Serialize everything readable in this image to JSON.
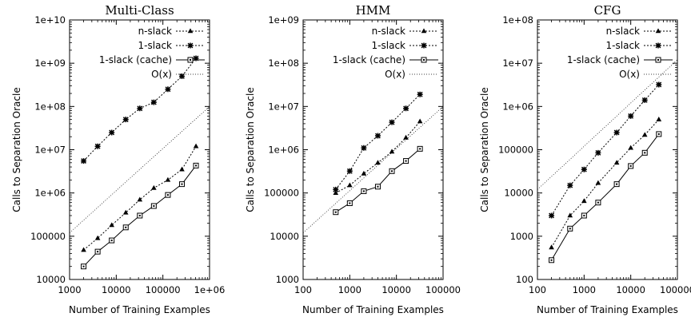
{
  "chart_data": [
    {
      "type": "line",
      "title": "Multi-Class",
      "xlabel": "Number of Training Examples",
      "ylabel": "Calls to Separation Oracle",
      "xscale": "log",
      "yscale": "log",
      "xlim": [
        1000,
        1000000
      ],
      "ylim": [
        10000,
        10000000000
      ],
      "xticks": [
        1000,
        10000,
        100000,
        1000000
      ],
      "xtick_labels": [
        "1000",
        "10000",
        "100000",
        "1e+06"
      ],
      "yticks": [
        10000,
        100000,
        1000000,
        10000000,
        100000000,
        1000000000,
        10000000000
      ],
      "ytick_labels": [
        "10000",
        "100000",
        "1e+06",
        "1e+07",
        "1e+08",
        "1e+09",
        "1e+10"
      ],
      "legend": "top-right",
      "series": [
        {
          "name": "n-slack",
          "marker": "triangle",
          "dash": "2,2",
          "x": [
            2000,
            4000,
            8000,
            16000,
            32000,
            64000,
            128000,
            256000,
            512000
          ],
          "y": [
            48000,
            90000,
            180000,
            350000,
            700000,
            1300000,
            2000000,
            3500000,
            12000000
          ]
        },
        {
          "name": "1-slack",
          "marker": "star",
          "dash": "2,2",
          "x": [
            2000,
            4000,
            8000,
            16000,
            32000,
            64000,
            128000,
            256000,
            512000
          ],
          "y": [
            5500000,
            12000000,
            25000000,
            50000000,
            90000000,
            125000000,
            250000000,
            500000000,
            1300000000
          ]
        },
        {
          "name": "1-slack (cache)",
          "marker": "square",
          "dash": "",
          "x": [
            2000,
            4000,
            8000,
            16000,
            32000,
            64000,
            128000,
            256000,
            512000
          ],
          "y": [
            20000,
            44000,
            80000,
            160000,
            300000,
            500000,
            900000,
            1600000,
            4300000
          ]
        },
        {
          "name": "O(x)",
          "marker": "none",
          "dash": "1,2",
          "x": [
            1000,
            1000000
          ],
          "y": [
            120000,
            100000000
          ]
        }
      ]
    },
    {
      "type": "line",
      "title": "HMM",
      "xlabel": "Number of Training Examples",
      "ylabel": "Calls to Separation Oracle",
      "xscale": "log",
      "yscale": "log",
      "xlim": [
        100,
        100000
      ],
      "ylim": [
        1000,
        1000000000
      ],
      "xticks": [
        100,
        1000,
        10000,
        100000
      ],
      "xtick_labels": [
        "100",
        "1000",
        "10000",
        "100000"
      ],
      "yticks": [
        1000,
        10000,
        100000,
        1000000,
        10000000,
        100000000,
        1000000000
      ],
      "ytick_labels": [
        "1000",
        "10000",
        "100000",
        "1e+06",
        "1e+07",
        "1e+08",
        "1e+09"
      ],
      "legend": "top-right",
      "series": [
        {
          "name": "n-slack",
          "marker": "triangle",
          "dash": "2,2",
          "x": [
            500,
            1000,
            2000,
            4000,
            8000,
            16000,
            32000
          ],
          "y": [
            100000,
            150000,
            280000,
            500000,
            900000,
            1900000,
            4500000
          ]
        },
        {
          "name": "1-slack",
          "marker": "star",
          "dash": "2,2",
          "x": [
            500,
            1000,
            2000,
            4000,
            8000,
            16000,
            32000
          ],
          "y": [
            120000,
            320000,
            1100000,
            2100000,
            4300000,
            9000000,
            19000000
          ]
        },
        {
          "name": "1-slack (cache)",
          "marker": "square",
          "dash": "",
          "x": [
            500,
            1000,
            2000,
            4000,
            8000,
            16000,
            32000
          ],
          "y": [
            36000,
            58000,
            110000,
            140000,
            320000,
            550000,
            1050000
          ]
        },
        {
          "name": "O(x)",
          "marker": "none",
          "dash": "1,2",
          "x": [
            100,
            100000
          ],
          "y": [
            12000,
            10000000
          ]
        }
      ]
    },
    {
      "type": "line",
      "title": "CFG",
      "xlabel": "Number of Training Examples",
      "ylabel": "Calls to Separation Oracle",
      "xscale": "log",
      "yscale": "log",
      "xlim": [
        100,
        100000
      ],
      "ylim": [
        100,
        100000000
      ],
      "xticks": [
        100,
        1000,
        10000,
        100000
      ],
      "xtick_labels": [
        "100",
        "1000",
        "10000",
        "100000"
      ],
      "yticks": [
        100,
        1000,
        10000,
        100000,
        1000000,
        10000000,
        100000000
      ],
      "ytick_labels": [
        "100",
        "1000",
        "10000",
        "100000",
        "1e+06",
        "1e+07",
        "1e+08"
      ],
      "legend": "top-right",
      "series": [
        {
          "name": "n-slack",
          "marker": "triangle",
          "dash": "2,2",
          "x": [
            200,
            500,
            1000,
            2000,
            5000,
            10000,
            20000,
            40000
          ],
          "y": [
            550,
            3000,
            6500,
            17000,
            50000,
            110000,
            220000,
            500000
          ]
        },
        {
          "name": "1-slack",
          "marker": "star",
          "dash": "2,2",
          "x": [
            200,
            500,
            1000,
            2000,
            5000,
            10000,
            20000,
            40000
          ],
          "y": [
            3000,
            15000,
            35000,
            85000,
            250000,
            600000,
            1400000,
            3200000
          ]
        },
        {
          "name": "1-slack (cache)",
          "marker": "square",
          "dash": "",
          "x": [
            200,
            500,
            1000,
            2000,
            5000,
            10000,
            20000,
            40000
          ],
          "y": [
            280,
            1500,
            3000,
            6000,
            16000,
            42000,
            85000,
            230000
          ]
        },
        {
          "name": "O(x)",
          "marker": "none",
          "dash": "1,2",
          "x": [
            100,
            100000
          ],
          "y": [
            12000,
            12000000
          ]
        }
      ]
    }
  ]
}
